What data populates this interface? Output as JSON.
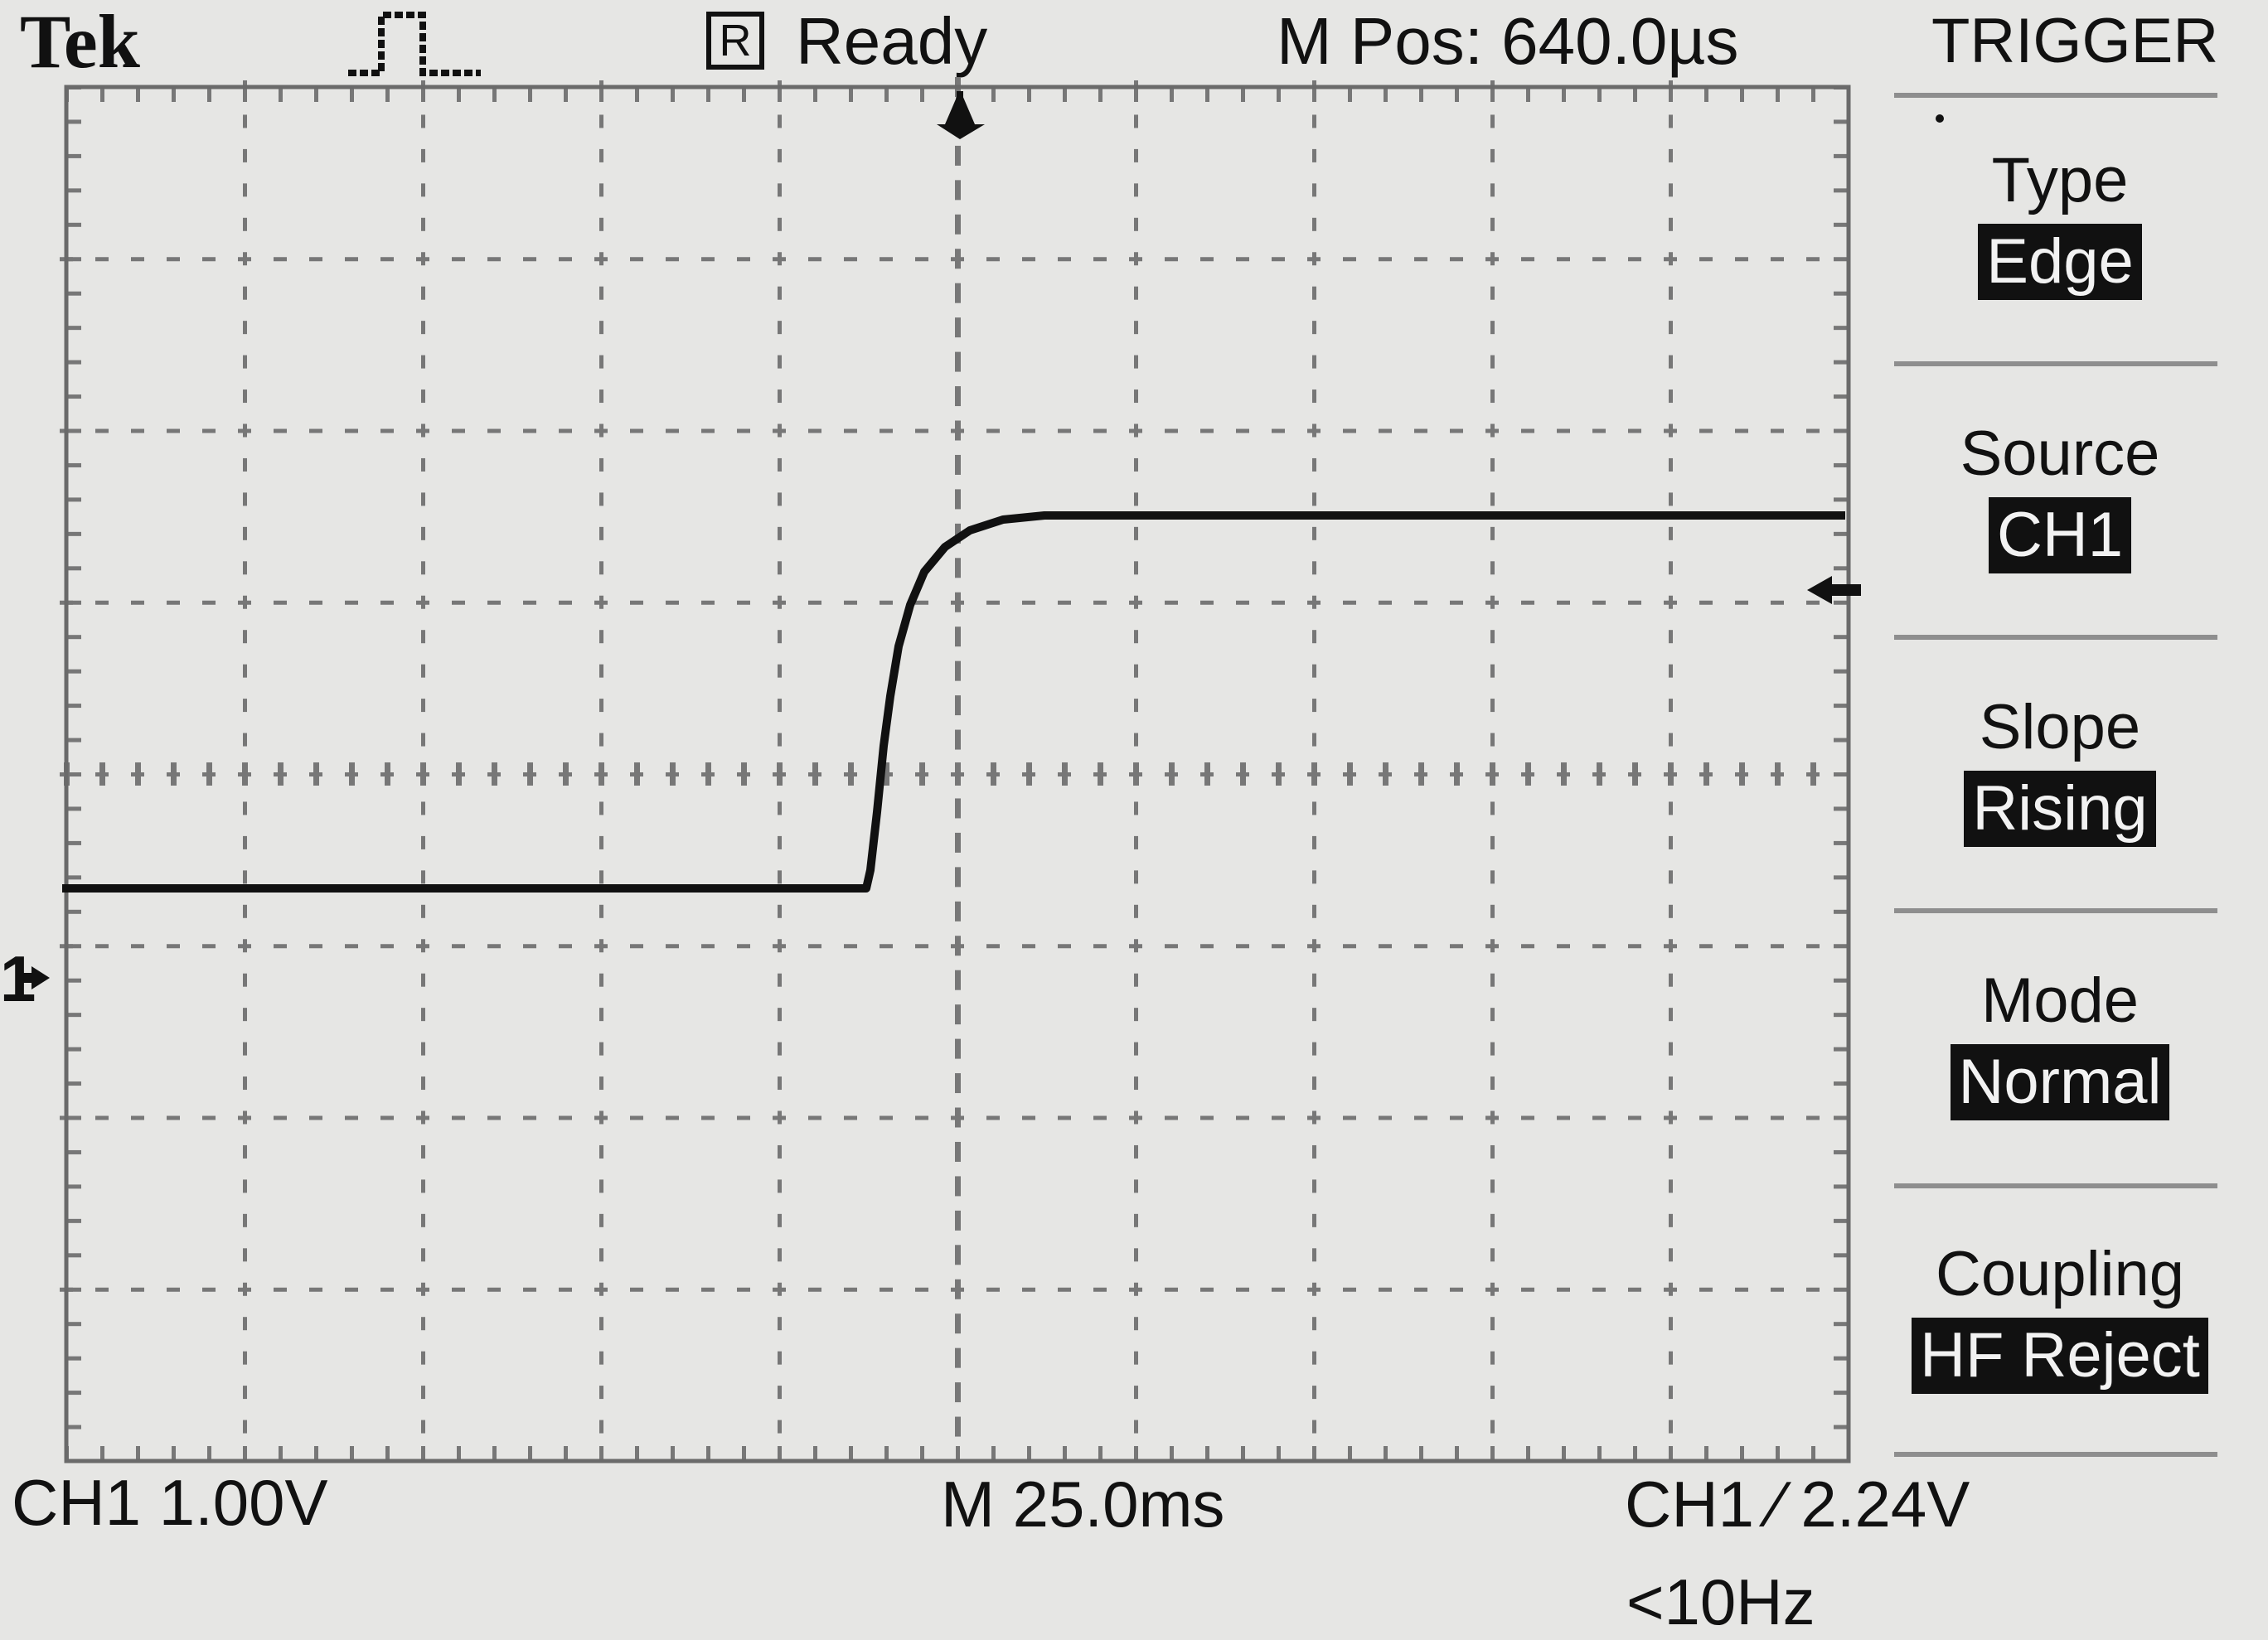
{
  "brand": "Tek",
  "acquisition": {
    "run_indicator": "R",
    "status": "Ready"
  },
  "horizontal_position": "M Pos: 640.0µs",
  "trigger_menu": {
    "title": "TRIGGER",
    "items": [
      {
        "label": "Type",
        "value": "Edge"
      },
      {
        "label": "Source",
        "value": "CH1"
      },
      {
        "label": "Slope",
        "value": "Rising"
      },
      {
        "label": "Mode",
        "value": "Normal"
      },
      {
        "label": "Coupling",
        "value": "HF Reject"
      }
    ]
  },
  "channel": {
    "marker": "1",
    "scale": "CH1  1.00V"
  },
  "timebase": "M 25.0ms",
  "trigger_readout": "CH1 ∕ 2.24V",
  "trigger_frequency": "<10Hz",
  "icons": {
    "acquisition": "pulse-waveform-icon",
    "trigger_position": "down-arrow-icon",
    "trigger_level": "left-arrow-icon",
    "channel_ground": "right-arrow-icon"
  },
  "colors": {
    "background": "#e6e6e4",
    "trace": "#111111",
    "menu_highlight": "#111111"
  }
}
